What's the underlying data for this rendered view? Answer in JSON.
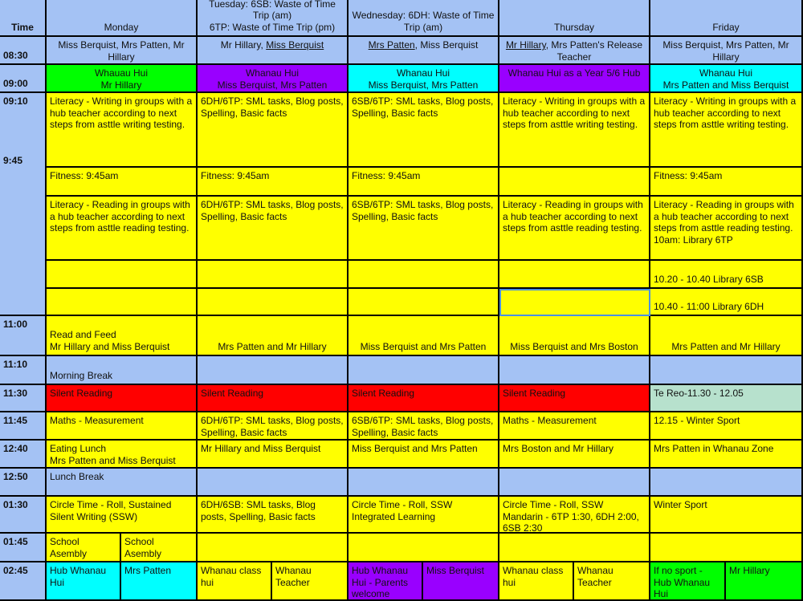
{
  "colors": {
    "yellow": "#ffff00",
    "blue": "#a4c2f4",
    "green": "#00ff00",
    "purple": "#9900ff",
    "cyan": "#00ffff",
    "red": "#ff0000",
    "teal": "#b7e1cd"
  },
  "extra_time_label": "9:45",
  "rows": [
    {
      "time": "Time",
      "days": [
        {
          "text": "Monday",
          "bg": "blue"
        },
        {
          "text": "Tuesday: 6SB: Waste of Time Trip (am)\n6TP: Waste of Time Trip (pm)",
          "bg": "blue"
        },
        {
          "text": "Wednesday: 6DH: Waste of Time Trip (am)",
          "bg": "blue"
        },
        {
          "text": "Thursday",
          "bg": "blue"
        },
        {
          "text": "Friday",
          "bg": "blue"
        }
      ]
    },
    {
      "time": "08:30",
      "days": [
        {
          "parts": [
            {
              "t": "Miss Berquist, Mrs Patten, Mr Hillary"
            }
          ],
          "bg": "blue"
        },
        {
          "parts": [
            {
              "t": "Mr Hillary, "
            },
            {
              "t": "Miss Berquist",
              "u": true
            }
          ],
          "bg": "blue"
        },
        {
          "parts": [
            {
              "t": "Mrs Patten",
              "u": true
            },
            {
              "t": ", Miss Berquist"
            }
          ],
          "bg": "blue"
        },
        {
          "parts": [
            {
              "t": "Mr Hillary",
              "u": true
            },
            {
              "t": ", Mrs Patten's Release Teacher"
            }
          ],
          "bg": "blue"
        },
        {
          "parts": [
            {
              "t": "Miss Berquist, Mrs Patten, Mr Hillary"
            }
          ],
          "bg": "blue"
        }
      ]
    },
    {
      "time": "09:00",
      "days": [
        {
          "text": "Whauau Hui\nMr Hillary",
          "bg": "green"
        },
        {
          "text": "Whanau Hui\nMiss Berquist, Mrs Patten",
          "bg": "purple"
        },
        {
          "text": "Whanau Hui\nMiss Berquist, Mrs Patten",
          "bg": "cyan"
        },
        {
          "text": "Whanau Hui as a Year 5/6 Hub",
          "bg": "purple"
        },
        {
          "text": "Whanau Hui\nMrs Patten and Miss Berquist",
          "bg": "cyan"
        }
      ]
    },
    {
      "time": "09:10",
      "days": [
        {
          "text": "Literacy - Writing in groups with a hub teacher according to next steps from asttle writing testing.",
          "bg": "yellow"
        },
        {
          "text": "6DH/6TP: SML tasks, Blog posts, Spelling, Basic facts",
          "bg": "yellow"
        },
        {
          "text": "6SB/6TP: SML tasks, Blog posts, Spelling, Basic facts",
          "bg": "yellow"
        },
        {
          "text": "Literacy - Writing in groups with a hub teacher according to next steps from asttle writing testing.",
          "bg": "yellow"
        },
        {
          "text": "Literacy - Writing in groups with a hub teacher according to next steps from asttle writing testing.",
          "bg": "yellow"
        }
      ]
    },
    {
      "time": "",
      "days": [
        {
          "text": "Fitness: 9:45am",
          "bg": "yellow"
        },
        {
          "text": "Fitness: 9:45am",
          "bg": "yellow"
        },
        {
          "text": "Fitness: 9:45am",
          "bg": "yellow"
        },
        {
          "text": "",
          "bg": "yellow"
        },
        {
          "text": "Fitness: 9:45am",
          "bg": "yellow"
        }
      ]
    },
    {
      "time": "",
      "days": [
        {
          "text": "Literacy - Reading in groups with a hub teacher according to next steps from asttle reading testing.",
          "bg": "yellow"
        },
        {
          "text": "6DH/6TP: SML tasks, Blog posts, Spelling, Basic facts",
          "bg": "yellow"
        },
        {
          "text": "6SB/6TP: SML tasks, Blog posts, Spelling, Basic facts",
          "bg": "yellow"
        },
        {
          "text": "Literacy - Reading in groups with a hub teacher according to next steps from asttle reading testing.",
          "bg": "yellow"
        },
        {
          "text": "Literacy - Reading in groups with a hub teacher according to next steps from asttle reading testing. 10am: Library 6TP",
          "bg": "yellow"
        }
      ]
    },
    {
      "time": "",
      "days": [
        {
          "text": "",
          "bg": "yellow"
        },
        {
          "text": "",
          "bg": "yellow"
        },
        {
          "text": "",
          "bg": "yellow"
        },
        {
          "text": "",
          "bg": "yellow"
        },
        {
          "text": "10.20 - 10.40 Library 6SB",
          "bg": "yellow"
        }
      ]
    },
    {
      "time": "",
      "days": [
        {
          "text": "",
          "bg": "yellow"
        },
        {
          "text": "",
          "bg": "yellow"
        },
        {
          "text": "",
          "bg": "yellow"
        },
        {
          "text": "",
          "bg": "yellow",
          "selected": true
        },
        {
          "text": "10.40 - 11:00 Library 6DH",
          "bg": "yellow"
        }
      ]
    },
    {
      "time": "11:00",
      "days": [
        {
          "text": "Read and Feed\nMr Hillary and Miss Berquist",
          "bg": "yellow"
        },
        {
          "text": "Mrs Patten and Mr Hillary",
          "bg": "yellow"
        },
        {
          "text": "Miss Berquist and Mrs Patten",
          "bg": "yellow"
        },
        {
          "text": "Miss Berquist and Mrs Boston",
          "bg": "yellow"
        },
        {
          "text": "Mrs Patten and Mr Hillary",
          "bg": "yellow"
        }
      ]
    },
    {
      "time": "11:10",
      "days": [
        {
          "text": "Morning Break",
          "bg": "blue"
        },
        {
          "text": "",
          "bg": "blue"
        },
        {
          "text": "",
          "bg": "blue"
        },
        {
          "text": "",
          "bg": "blue"
        },
        {
          "text": "",
          "bg": "blue"
        }
      ]
    },
    {
      "time": "11:30",
      "days": [
        {
          "text": "Silent Reading",
          "bg": "red"
        },
        {
          "text": "Silent Reading",
          "bg": "red"
        },
        {
          "text": "Silent Reading",
          "bg": "red"
        },
        {
          "text": "Silent Reading",
          "bg": "red"
        },
        {
          "text": "Te Reo-11.30 - 12.05",
          "bg": "teal"
        }
      ]
    },
    {
      "time": "11:45",
      "days": [
        {
          "text": "Maths - Measurement",
          "bg": "yellow"
        },
        {
          "text": "6DH/6TP: SML tasks, Blog posts, Spelling, Basic facts",
          "bg": "yellow"
        },
        {
          "text": "6SB/6TP: SML tasks, Blog posts, Spelling, Basic facts",
          "bg": "yellow"
        },
        {
          "text": "Maths - Measurement",
          "bg": "yellow"
        },
        {
          "text": "12.15 - Winter Sport",
          "bg": "yellow"
        }
      ]
    },
    {
      "time": "12:40",
      "days": [
        {
          "text": "Eating Lunch\nMrs Patten and Miss Berquist",
          "bg": "yellow"
        },
        {
          "text": "Mr Hillary and Miss Berquist",
          "bg": "yellow"
        },
        {
          "text": "Miss Berquist and Mrs Patten",
          "bg": "yellow"
        },
        {
          "text": "Mrs Boston and Mr Hillary",
          "bg": "yellow"
        },
        {
          "text": "Mrs Patten in Whanau Zone",
          "bg": "yellow"
        }
      ]
    },
    {
      "time": "12:50",
      "days": [
        {
          "text": "Lunch Break",
          "bg": "blue"
        },
        {
          "text": "",
          "bg": "blue"
        },
        {
          "text": "",
          "bg": "blue"
        },
        {
          "text": "",
          "bg": "blue"
        },
        {
          "text": "",
          "bg": "blue"
        }
      ]
    },
    {
      "time": "01:30",
      "days": [
        {
          "text": "Circle Time - Roll, Sustained Silent Writing (SSW)",
          "bg": "yellow"
        },
        {
          "text": "6DH/6SB: SML tasks, Blog posts, Spelling, Basic facts",
          "bg": "yellow"
        },
        {
          "text": "Circle Time - Roll, SSW\nIntegrated Learning",
          "bg": "yellow"
        },
        {
          "text": "Circle Time - Roll, SSW\nMandarin - 6TP 1:30, 6DH 2:00, 6SB 2:30",
          "bg": "yellow"
        },
        {
          "text": "Winter Sport",
          "bg": "yellow"
        }
      ]
    },
    {
      "time": "01:45",
      "days": [
        {
          "split": [
            {
              "text": "School Asembly",
              "bg": "yellow"
            },
            {
              "text": "School Asembly",
              "bg": "yellow"
            }
          ]
        },
        {
          "text": "",
          "bg": "yellow"
        },
        {
          "text": "",
          "bg": "yellow"
        },
        {
          "text": "",
          "bg": "yellow"
        },
        {
          "text": "",
          "bg": "yellow"
        }
      ]
    },
    {
      "time": "02:45",
      "days": [
        {
          "split": [
            {
              "text": "Hub Whanau Hui",
              "bg": "cyan"
            },
            {
              "text": "Mrs Patten",
              "bg": "cyan"
            }
          ]
        },
        {
          "split": [
            {
              "text": "Whanau class hui",
              "bg": "yellow"
            },
            {
              "text": "Whanau Teacher",
              "bg": "yellow"
            }
          ]
        },
        {
          "split": [
            {
              "text": "Hub Whanau Hui - Parents welcome",
              "bg": "purple"
            },
            {
              "text": "Miss Berquist",
              "bg": "purple"
            }
          ]
        },
        {
          "split": [
            {
              "text": "Whanau class hui",
              "bg": "yellow"
            },
            {
              "text": "Whanau Teacher",
              "bg": "yellow"
            }
          ]
        },
        {
          "split": [
            {
              "text": "If no sport - Hub Whanau Hui",
              "bg": "green"
            },
            {
              "text": "Mr Hillary",
              "bg": "green"
            }
          ]
        }
      ]
    }
  ]
}
